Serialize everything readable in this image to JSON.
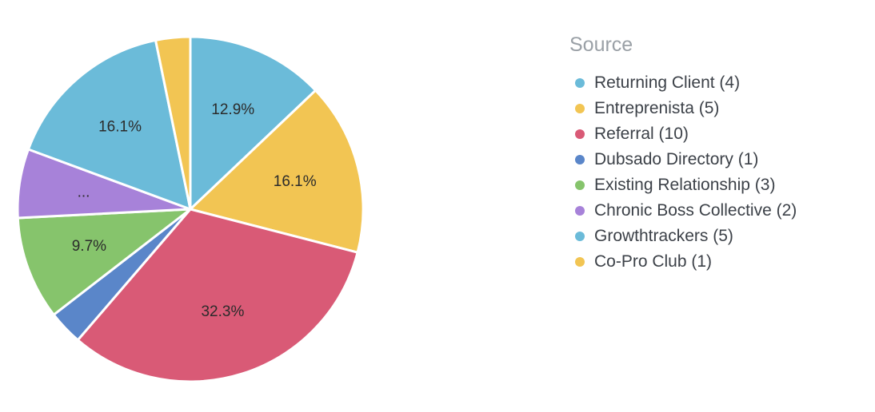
{
  "chart_data": {
    "type": "pie",
    "legend_title": "Source",
    "legend_position": "right",
    "slices": [
      {
        "name": "Returning Client (4)",
        "value": 4,
        "label": "12.9%",
        "color": "#6bbbd9"
      },
      {
        "name": "Entreprenista (5)",
        "value": 5,
        "label": "16.1%",
        "color": "#f2c553"
      },
      {
        "name": "Referral (10)",
        "value": 10,
        "label": "32.3%",
        "color": "#d95a76"
      },
      {
        "name": "Dubsado Directory (1)",
        "value": 1,
        "label": "",
        "color": "#5a86c9"
      },
      {
        "name": "Existing Relationship (3)",
        "value": 3,
        "label": "9.7%",
        "color": "#86c46c"
      },
      {
        "name": "Chronic Boss Collective (2)",
        "value": 2,
        "label": "...",
        "color": "#a782d9"
      },
      {
        "name": "Growthtrackers (5)",
        "value": 5,
        "label": "16.1%",
        "color": "#6bbbd9"
      },
      {
        "name": "Co-Pro Club (1)",
        "value": 1,
        "label": "",
        "color": "#f2c553"
      }
    ]
  }
}
